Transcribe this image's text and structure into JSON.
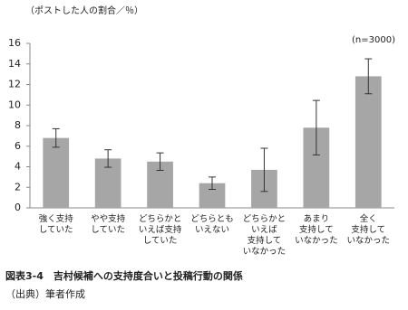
{
  "chart_data": {
    "type": "bar",
    "ylabel": "（ポストした人の割合／％）",
    "annotation": "(n=3000)",
    "categories": [
      "強く支持\nしていた",
      "やや支持\nしていた",
      "どちらかと\nいえば支持\nしていた",
      "どちらとも\nいえない",
      "どちらかと\nいえば\n支持して\nいなかった",
      "あまり\n支持して\nいなかった",
      "全く\n支持して\nいなかった"
    ],
    "values": [
      6.8,
      4.8,
      4.5,
      2.4,
      3.7,
      7.8,
      12.8
    ],
    "error": [
      0.9,
      0.85,
      0.85,
      0.6,
      2.1,
      2.65,
      1.7
    ],
    "color": "#a6a6a6",
    "ylim": [
      0,
      16
    ],
    "yticks": [
      0,
      2,
      4,
      6,
      8,
      10,
      12,
      14,
      16
    ],
    "grid": false,
    "caption": "図表3-4　吉村候補への支持度合いと投稿行動の関係",
    "source": "（出典）筆者作成"
  }
}
